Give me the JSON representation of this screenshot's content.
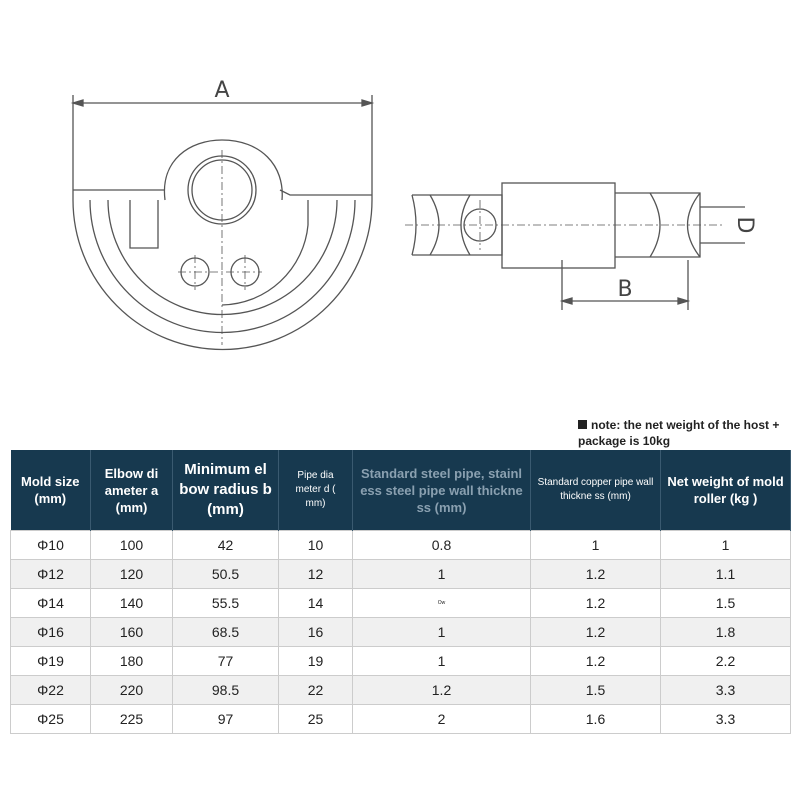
{
  "drawing": {
    "label_a": "A",
    "label_b": "B",
    "label_d": "D"
  },
  "note": "note: the net weight of the host + package is 10kg",
  "table": {
    "headers": [
      "Mold size (mm)",
      "Elbow di ameter a (mm)",
      "Minimum el bow radius b (mm)",
      "Pipe dia meter d ( mm)",
      "Standard steel pipe, stainl ess steel pipe wall thickne ss (mm)",
      "Standard copper pipe wall thickne ss (mm)",
      "Net weight of mold roller (kg )"
    ],
    "rows": [
      [
        "Φ10",
        "100",
        "42",
        "10",
        "0.8",
        "1",
        "1"
      ],
      [
        "Φ12",
        "120",
        "50.5",
        "12",
        "1",
        "1.2",
        "1.1"
      ],
      [
        "Φ14",
        "140",
        "55.5",
        "14",
        "Ow",
        "1.2",
        "1.5"
      ],
      [
        "Φ16",
        "160",
        "68.5",
        "16",
        "1",
        "1.2",
        "1.8"
      ],
      [
        "Φ19",
        "180",
        "77",
        "19",
        "1",
        "1.2",
        "2.2"
      ],
      [
        "Φ22",
        "220",
        "98.5",
        "22",
        "1.2",
        "1.5",
        "3.3"
      ],
      [
        "Φ25",
        "225",
        "97",
        "25",
        "2",
        "1.6",
        "3.3"
      ]
    ]
  }
}
